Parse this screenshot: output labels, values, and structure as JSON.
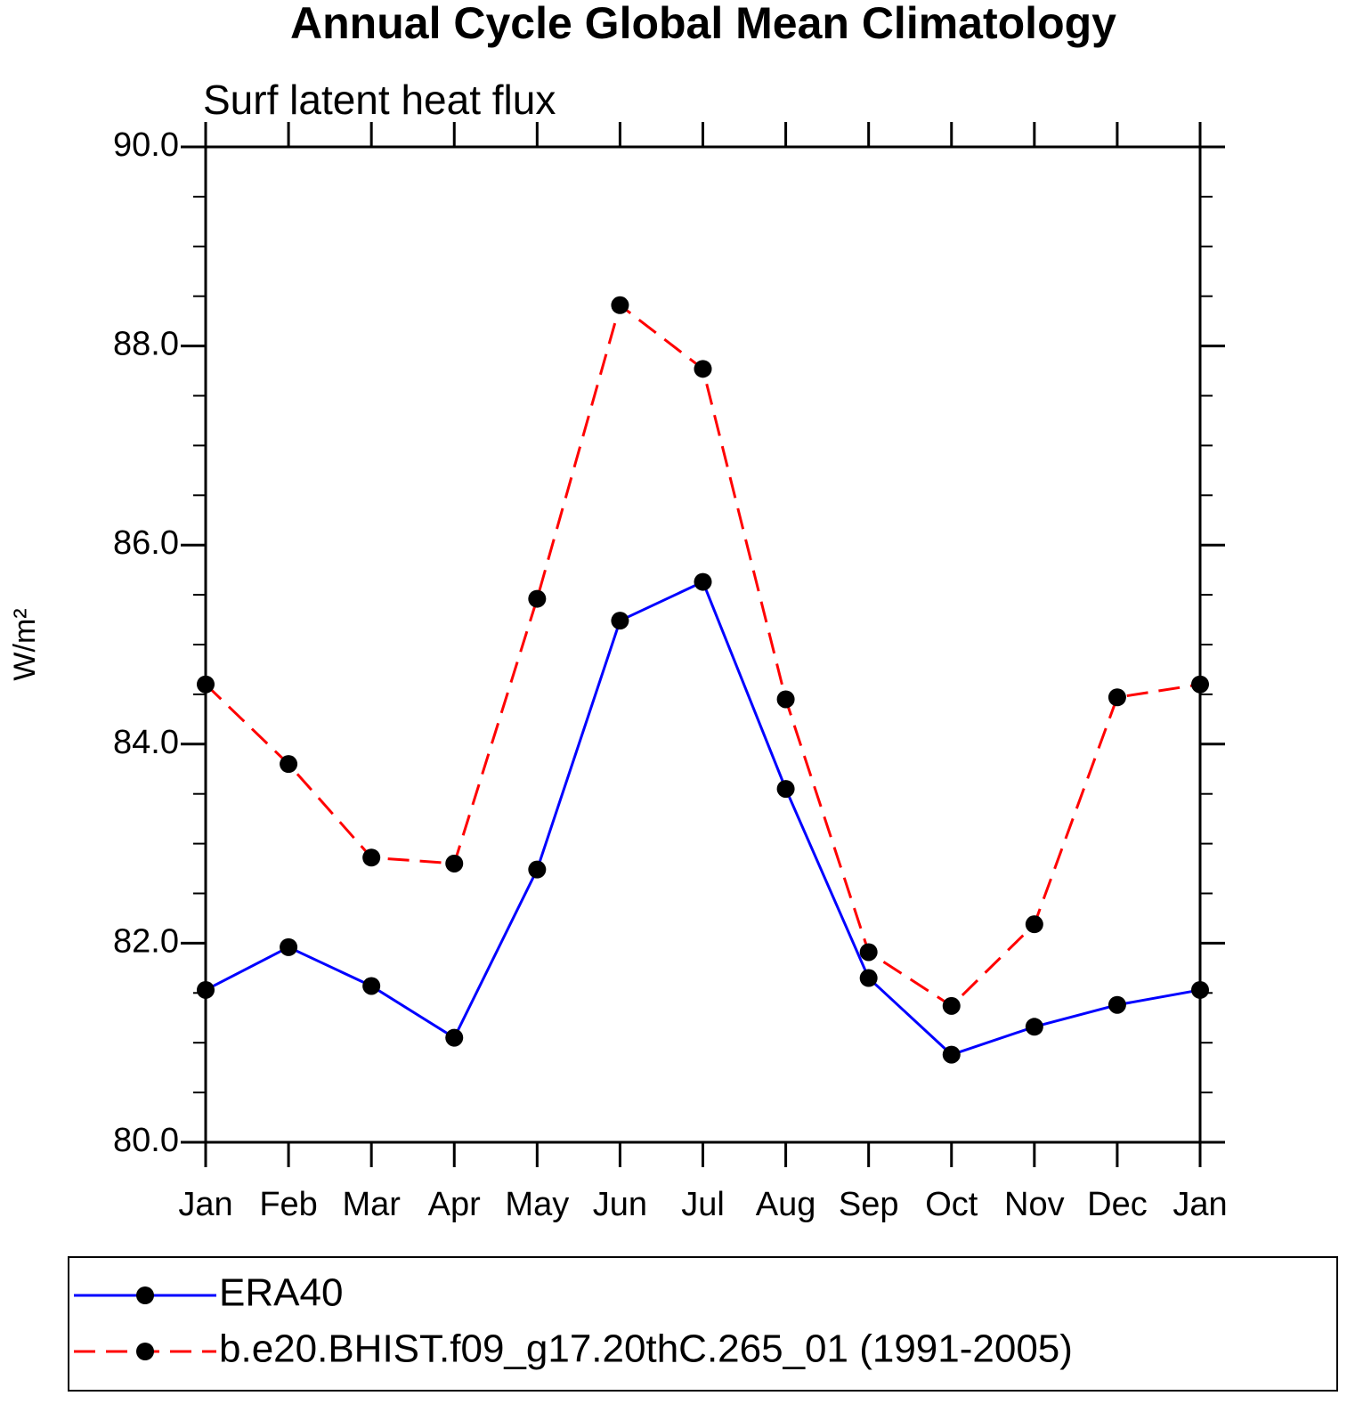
{
  "chart_data": {
    "type": "line",
    "title": "Annual Cycle Global Mean Climatology",
    "subtitle": "Surf latent heat flux",
    "ylabel": "W/m²",
    "categories": [
      "Jan",
      "Feb",
      "Mar",
      "Apr",
      "May",
      "Jun",
      "Jul",
      "Aug",
      "Sep",
      "Oct",
      "Nov",
      "Dec",
      "Jan"
    ],
    "series": [
      {
        "name": "ERA40",
        "color": "#0000ff",
        "linestyle": "solid",
        "values": [
          81.53,
          81.96,
          81.57,
          81.05,
          82.74,
          85.24,
          85.63,
          83.55,
          81.65,
          80.88,
          81.16,
          81.38,
          81.53
        ]
      },
      {
        "name": "b.e20.BHIST.f09_g17.20thC.265_01 (1991-2005)",
        "color": "#ff0000",
        "linestyle": "dashed",
        "values": [
          84.6,
          83.8,
          82.86,
          82.8,
          85.46,
          88.41,
          87.77,
          84.45,
          81.91,
          81.37,
          82.19,
          84.47,
          84.6
        ]
      }
    ],
    "marker_color": "#000000",
    "ylim": [
      80,
      90
    ],
    "yticks": [
      {
        "value": 80,
        "label": "80.0"
      },
      {
        "value": 82,
        "label": "82.0"
      },
      {
        "value": 84,
        "label": "84.0"
      },
      {
        "value": 86,
        "label": "86.0"
      },
      {
        "value": 88,
        "label": "88.0"
      },
      {
        "value": 90,
        "label": "90.0"
      }
    ],
    "yminorticks": [
      80.5,
      81,
      81.5,
      82.5,
      83,
      83.5,
      84.5,
      85,
      85.5,
      86.5,
      87,
      87.5,
      88.5,
      89,
      89.5
    ],
    "grid": false
  }
}
